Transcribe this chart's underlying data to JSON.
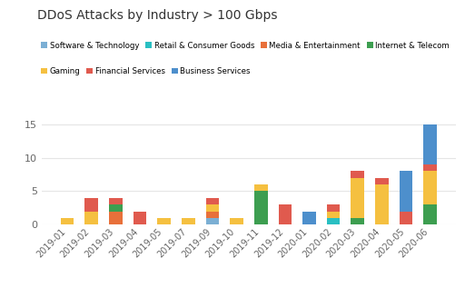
{
  "title": "DDoS Attacks by Industry > 100 Gbps",
  "months": [
    "2019-01",
    "2019-02",
    "2019-03",
    "2019-04",
    "2019-05",
    "2019-07",
    "2019-09",
    "2019-10",
    "2019-11",
    "2019-12",
    "2020-01",
    "2020-02",
    "2020-03",
    "2020-04",
    "2020-05",
    "2020-06"
  ],
  "categories": [
    "Software & Technology",
    "Retail & Consumer Goods",
    "Media & Entertainment",
    "Internet & Telecom",
    "Gaming",
    "Financial Services",
    "Business Services"
  ],
  "colors": [
    "#7bafd4",
    "#29bfc2",
    "#e8703a",
    "#3d9e50",
    "#f5c040",
    "#e05a4e",
    "#4d8fcc"
  ],
  "data": {
    "Software & Technology": [
      0,
      0,
      0,
      0,
      0,
      0,
      1,
      0,
      0,
      0,
      0,
      0,
      0,
      0,
      0,
      0
    ],
    "Retail & Consumer Goods": [
      0,
      0,
      0,
      0,
      0,
      0,
      0,
      0,
      0,
      0,
      0,
      1,
      0,
      0,
      0,
      0
    ],
    "Media & Entertainment": [
      0,
      0,
      2,
      0,
      0,
      0,
      1,
      0,
      0,
      0,
      0,
      0,
      0,
      0,
      0,
      0
    ],
    "Internet & Telecom": [
      0,
      0,
      1,
      0,
      0,
      0,
      0,
      0,
      5,
      0,
      0,
      0,
      1,
      0,
      0,
      3
    ],
    "Gaming": [
      1,
      2,
      0,
      0,
      1,
      1,
      1,
      1,
      1,
      0,
      0,
      1,
      6,
      6,
      0,
      5
    ],
    "Financial Services": [
      0,
      2,
      1,
      2,
      0,
      0,
      1,
      0,
      0,
      3,
      0,
      1,
      1,
      1,
      2,
      1
    ],
    "Business Services": [
      0,
      0,
      0,
      0,
      0,
      0,
      0,
      0,
      0,
      0,
      2,
      0,
      0,
      0,
      6,
      6
    ]
  },
  "ylim": [
    0,
    15.5
  ],
  "yticks": [
    0,
    5,
    10,
    15
  ],
  "background_color": "#ffffff",
  "grid_color": "#e5e5e5"
}
